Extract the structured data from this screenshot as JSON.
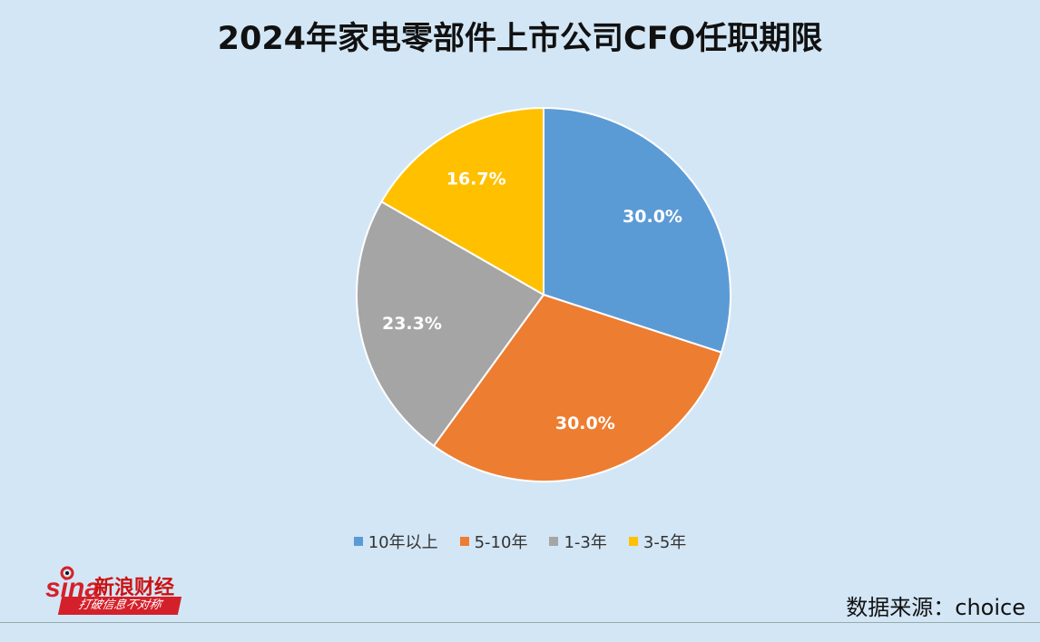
{
  "chart_data": {
    "type": "pie",
    "title": "2024年家电零部件上市公司CFO任职期限",
    "slices": [
      {
        "label": "10年以上",
        "value": 30.0,
        "display": "30.0%",
        "color": "#5b9bd5"
      },
      {
        "label": "5-10年",
        "value": 30.0,
        "display": "30.0%",
        "color": "#ed7d31"
      },
      {
        "label": "1-3年",
        "value": 23.3,
        "display": "23.3%",
        "color": "#a5a5a5"
      },
      {
        "label": "3-5年",
        "value": 16.7,
        "display": "16.7%",
        "color": "#ffc000"
      }
    ],
    "start_angle": "12 o'clock",
    "direction": "clockwise",
    "legend_position": "bottom"
  },
  "branding": {
    "logo_text": "新浪财经",
    "logo_slogan": "打破信息不对称"
  },
  "source": "数据来源：choice"
}
